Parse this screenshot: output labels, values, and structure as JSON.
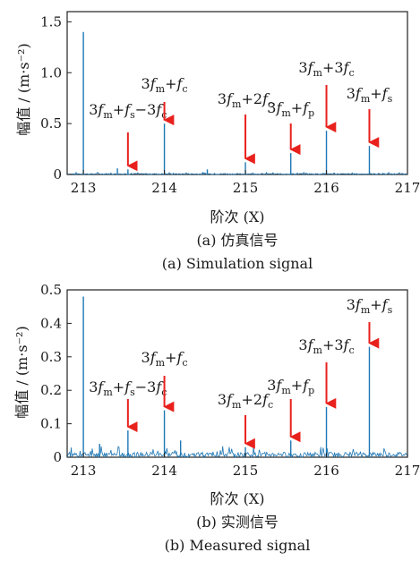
{
  "figure": {
    "xlabel_left": "阶次 (X)",
    "ylabel": "幅值 / (m·s⁻²)"
  },
  "chart_data": [
    {
      "type": "line",
      "panel": "a",
      "caption_cn": "(a) 仿真信号",
      "caption_en": "(a) Simulation signal",
      "xlabel": "阶次 (X)",
      "ylabel": "幅值 / (m·s⁻²)",
      "xlim": [
        212.8,
        217
      ],
      "ylim": [
        0,
        1.6
      ],
      "xticks": [
        "213",
        "214",
        "215",
        "216",
        "217"
      ],
      "yticks": [
        "0",
        "0.5",
        "1.0",
        "1.5"
      ],
      "line_color": "#1f77b4",
      "arrow_color": "#e8211d",
      "peaks": [
        {
          "x": 213.0,
          "y": 1.4
        },
        {
          "x": 213.42,
          "y": 0.06
        },
        {
          "x": 213.55,
          "y": 0.05
        },
        {
          "x": 214.0,
          "y": 0.5
        },
        {
          "x": 214.53,
          "y": 0.05
        },
        {
          "x": 215.0,
          "y": 0.12
        },
        {
          "x": 215.56,
          "y": 0.21
        },
        {
          "x": 216.0,
          "y": 0.43
        },
        {
          "x": 216.53,
          "y": 0.28
        }
      ],
      "annotations": [
        {
          "parts": [
            "3",
            "f",
            "m",
            "+",
            "f",
            "s",
            "−3",
            "f",
            "c"
          ],
          "x": 213.55
        },
        {
          "parts": [
            "3",
            "f",
            "m",
            "+",
            "f",
            "c"
          ],
          "x": 214.0
        },
        {
          "parts": [
            "3",
            "f",
            "m",
            "+2",
            "f",
            "c"
          ],
          "x": 215.0
        },
        {
          "parts": [
            "3",
            "f",
            "m",
            "+",
            "f",
            "p"
          ],
          "x": 215.56
        },
        {
          "parts": [
            "3",
            "f",
            "m",
            "+3",
            "f",
            "c"
          ],
          "x": 216.0
        },
        {
          "parts": [
            "3",
            "f",
            "m",
            "+",
            "f",
            "s"
          ],
          "x": 216.53
        }
      ]
    },
    {
      "type": "line",
      "panel": "b",
      "caption_cn": "(b) 实测信号",
      "caption_en": "(b) Measured signal",
      "xlabel": "阶次 (X)",
      "ylabel": "幅值 / (m·s⁻²)",
      "xlim": [
        212.8,
        217
      ],
      "ylim": [
        0,
        0.5
      ],
      "xticks": [
        "213",
        "214",
        "215",
        "216",
        "217"
      ],
      "yticks": [
        "0",
        "0.1",
        "0.2",
        "0.3",
        "0.4",
        "0.5"
      ],
      "line_color": "#1f77b4",
      "arrow_color": "#e8211d",
      "peaks": [
        {
          "x": 213.0,
          "y": 0.48
        },
        {
          "x": 213.2,
          "y": 0.04
        },
        {
          "x": 213.55,
          "y": 0.08
        },
        {
          "x": 214.0,
          "y": 0.14
        },
        {
          "x": 214.2,
          "y": 0.05
        },
        {
          "x": 215.0,
          "y": 0.03
        },
        {
          "x": 215.56,
          "y": 0.05
        },
        {
          "x": 216.0,
          "y": 0.15
        },
        {
          "x": 216.53,
          "y": 0.33
        }
      ],
      "annotations": [
        {
          "parts": [
            "3",
            "f",
            "m",
            "+",
            "f",
            "s",
            "−3",
            "f",
            "c"
          ],
          "x": 213.55
        },
        {
          "parts": [
            "3",
            "f",
            "m",
            "+",
            "f",
            "c"
          ],
          "x": 214.0
        },
        {
          "parts": [
            "3",
            "f",
            "m",
            "+2",
            "f",
            "c"
          ],
          "x": 215.0
        },
        {
          "parts": [
            "3",
            "f",
            "m",
            "+",
            "f",
            "p"
          ],
          "x": 215.56
        },
        {
          "parts": [
            "3",
            "f",
            "m",
            "+3",
            "f",
            "c"
          ],
          "x": 216.0
        },
        {
          "parts": [
            "3",
            "f",
            "m",
            "+",
            "f",
            "s"
          ],
          "x": 216.53
        }
      ]
    }
  ]
}
